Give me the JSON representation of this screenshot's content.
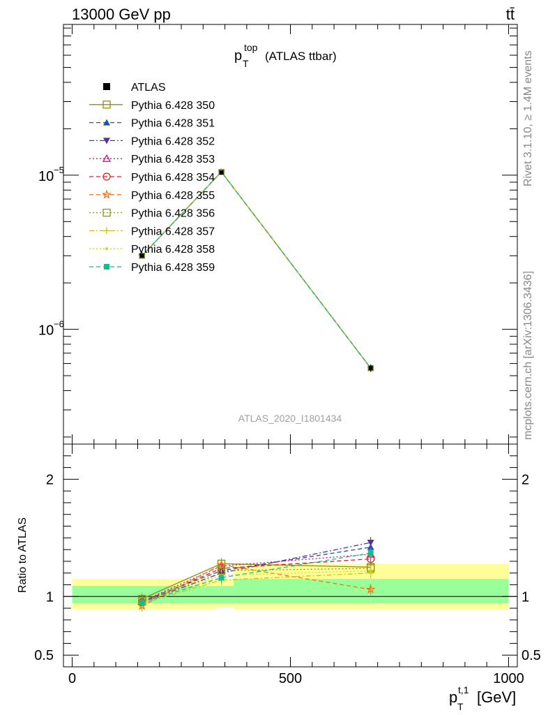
{
  "header": {
    "energy_label": "13000 GeV pp",
    "process_label": "tt̄"
  },
  "side_labels": {
    "rivet": "Rivet 3.1.10, ≥ 1.4M events",
    "source": "mcplots.cern.ch [arXiv:1306.3436]"
  },
  "colors": {
    "atlas": "#000000",
    "band_inner": "#99ff99",
    "band_outer": "#ffff99"
  },
  "chart_data": [
    {
      "type": "line",
      "title": "p_T^top (ATLAS ttbar)",
      "title_main": "p",
      "title_sup": "top",
      "title_sub": "T",
      "title_rest": "(ATLAS ttbar)",
      "watermark": "ATLAS_2020_I1801434",
      "yscale": "log",
      "xlim": [
        -20,
        1020
      ],
      "ylim": [
        1.8e-07,
        9.5e-05
      ],
      "y_ticks": [
        {
          "value": 1e-05,
          "base": "10",
          "exp": "−5"
        },
        {
          "value": 1e-06,
          "base": "10",
          "exp": "−6"
        }
      ],
      "legend_position": "top-left",
      "data": {
        "name": "ATLAS",
        "x": [
          160,
          342,
          684
        ],
        "y": [
          3e-06,
          1.04e-05,
          5.6e-07
        ],
        "y_err": [
          7e-08,
          2.5e-07,
          3e-08
        ]
      },
      "series": [
        {
          "name": "Pythia 6.428 350",
          "color": "#8c8c14",
          "dash": "solid",
          "marker": "square-open",
          "values": [
            3e-06,
            1.05e-05,
            5.6e-07
          ]
        },
        {
          "name": "Pythia 6.428 351",
          "color": "#1f4fb4",
          "dash": "dashed",
          "marker": "triangle-up",
          "values": [
            3e-06,
            1.05e-05,
            5.6e-07
          ]
        },
        {
          "name": "Pythia 6.428 352",
          "color": "#5a2ea6",
          "dash": "dashdot",
          "marker": "triangle-down",
          "values": [
            3e-06,
            1.05e-05,
            5.6e-07
          ]
        },
        {
          "name": "Pythia 6.428 353",
          "color": "#c8147a",
          "dash": "dotted",
          "marker": "triangle-open",
          "values": [
            3e-06,
            1.05e-05,
            5.6e-07
          ]
        },
        {
          "name": "Pythia 6.428 354",
          "color": "#dc1e1e",
          "dash": "dashed",
          "marker": "circle-open",
          "values": [
            3e-06,
            1.05e-05,
            5.6e-07
          ]
        },
        {
          "name": "Pythia 6.428 355",
          "color": "#f07814",
          "dash": "dashed",
          "marker": "star-open",
          "values": [
            3e-06,
            1.05e-05,
            5.6e-07
          ]
        },
        {
          "name": "Pythia 6.428 356",
          "color": "#8c9614",
          "dash": "dotted",
          "marker": "square-open",
          "values": [
            3e-06,
            1.05e-05,
            5.6e-07
          ]
        },
        {
          "name": "Pythia 6.428 357",
          "color": "#d2be14",
          "dash": "dashdot",
          "marker": "cross",
          "values": [
            3e-06,
            1.05e-05,
            5.6e-07
          ]
        },
        {
          "name": "Pythia 6.428 358",
          "color": "#c8dc14",
          "dash": "dotted",
          "marker": "dot",
          "values": [
            3e-06,
            1.05e-05,
            5.6e-07
          ]
        },
        {
          "name": "Pythia 6.428 359",
          "color": "#14be8c",
          "dash": "dashed",
          "marker": "square-filled",
          "values": [
            3e-06,
            1.05e-05,
            5.6e-07
          ]
        }
      ]
    },
    {
      "type": "line",
      "ylabel": "Ratio to ATLAS",
      "xlabel": "p_T^t,1 [GeV]",
      "xlabel_main": "p",
      "xlabel_sup": "t,1",
      "xlabel_sub": "T",
      "xlabel_rest": "[GeV]",
      "xlim": [
        -20,
        1020
      ],
      "ylim": [
        0.4,
        2.3
      ],
      "x_ticks": [
        0,
        500,
        1000
      ],
      "y_ticks": [
        0.5,
        1,
        2
      ],
      "bands": [
        {
          "x0": 0,
          "x1": 330,
          "inner": [
            0.94,
            1.09
          ],
          "outer": [
            0.89,
            1.15
          ]
        },
        {
          "x0": 330,
          "x1": 370,
          "inner": [
            0.94,
            1.09
          ],
          "outer": [
            0.91,
            1.15
          ]
        },
        {
          "x0": 370,
          "x1": 1000,
          "inner": [
            0.94,
            1.15
          ],
          "outer": [
            0.89,
            1.28
          ]
        }
      ],
      "series": [
        {
          "name": "Pythia 6.428 350",
          "values": [
            0.98,
            1.28,
            1.25
          ]
        },
        {
          "name": "Pythia 6.428 351",
          "values": [
            0.96,
            1.22,
            1.42
          ]
        },
        {
          "name": "Pythia 6.428 352",
          "values": [
            0.95,
            1.2,
            1.46
          ]
        },
        {
          "name": "Pythia 6.428 353",
          "values": [
            0.96,
            1.26,
            1.36
          ]
        },
        {
          "name": "Pythia 6.428 354",
          "values": [
            0.95,
            1.24,
            1.32
          ]
        },
        {
          "name": "Pythia 6.428 355",
          "values": [
            0.92,
            1.27,
            1.06
          ]
        },
        {
          "name": "Pythia 6.428 356",
          "values": [
            0.96,
            1.22,
            1.24
          ]
        },
        {
          "name": "Pythia 6.428 357",
          "values": [
            0.94,
            1.14,
            1.2
          ]
        },
        {
          "name": "Pythia 6.428 358",
          "values": [
            0.95,
            1.18,
            1.22
          ]
        },
        {
          "name": "Pythia 6.428 359",
          "values": [
            0.95,
            1.16,
            1.37
          ]
        }
      ]
    }
  ]
}
